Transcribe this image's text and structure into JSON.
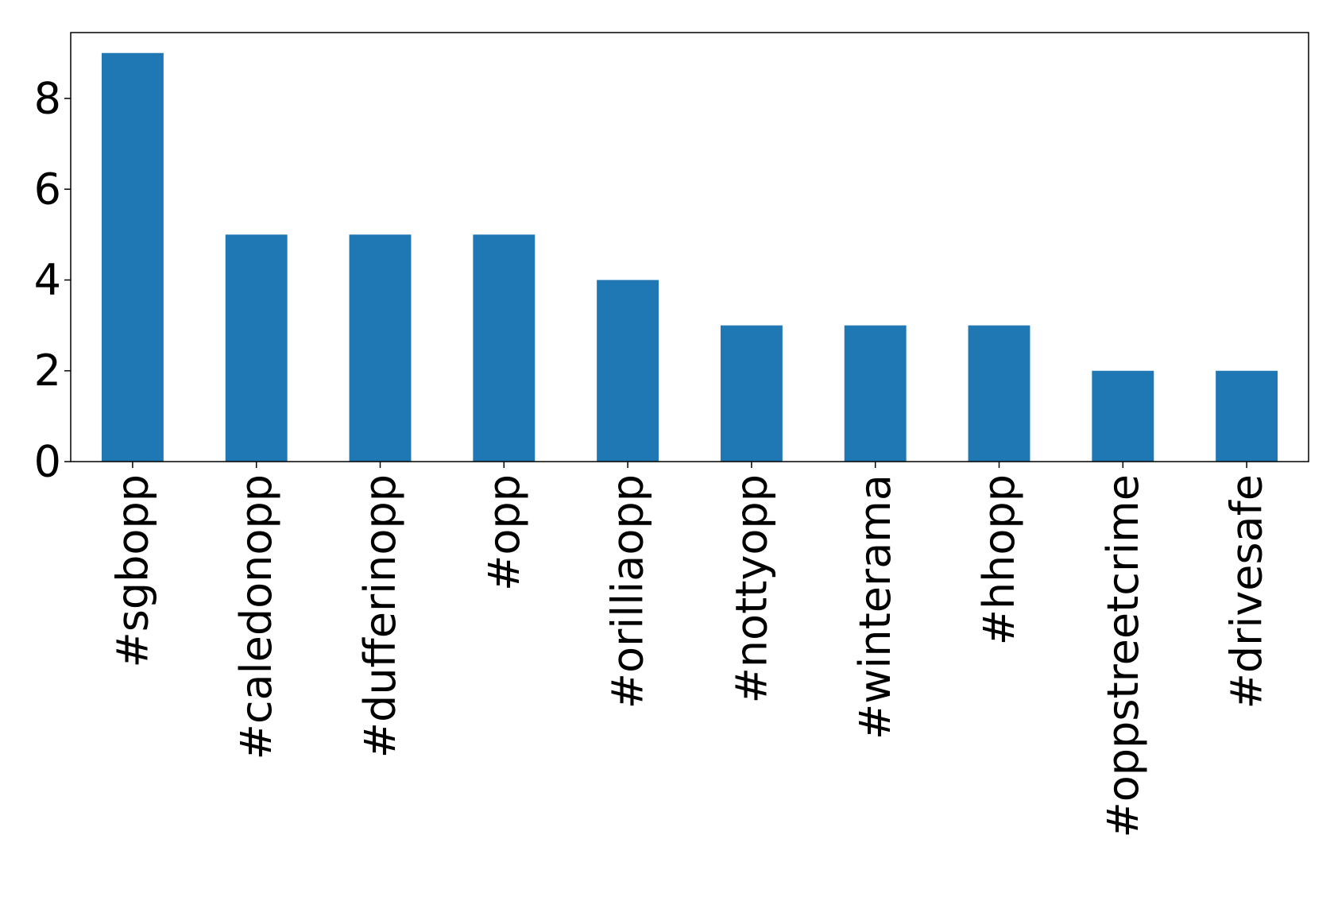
{
  "chart_data": {
    "type": "bar",
    "title": "",
    "xlabel": "",
    "ylabel": "",
    "categories": [
      "#sgbopp",
      "#caledonopp",
      "#dufferinopp",
      "#opp",
      "#orilliaopp",
      "#nottyopp",
      "#winterama",
      "#hhopp",
      "#oppstreetcrime",
      "#drivesafe"
    ],
    "values": [
      9,
      5,
      5,
      5,
      4,
      3,
      3,
      3,
      2,
      2
    ],
    "ylim": [
      0,
      9.45
    ],
    "yticks": [
      0,
      2,
      4,
      6,
      8
    ],
    "ytick_labels": [
      "0",
      "2",
      "4",
      "6",
      "8"
    ],
    "grid": false,
    "bar_color": "#1f77b4"
  }
}
